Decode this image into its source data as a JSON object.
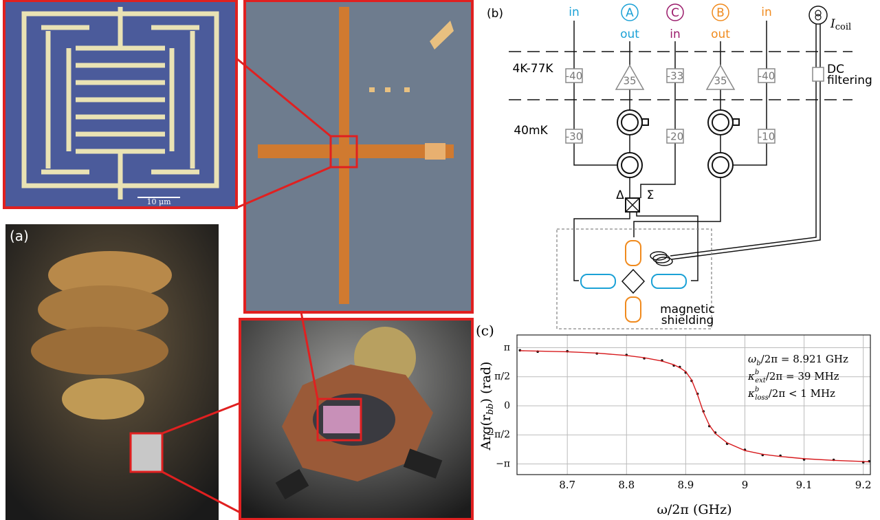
{
  "panels": {
    "a": "(a)",
    "b": "(b)"
  },
  "micrograph": {
    "scale_bar": "10 μm"
  },
  "diagram": {
    "port_in_a": "in",
    "port_a": "A",
    "port_out_a": "out",
    "port_c": "C",
    "port_in_c": "in",
    "port_b": "B",
    "port_out_b": "out",
    "port_in_b": "in",
    "coil": {
      "base": "I",
      "sub": "coil"
    },
    "stage_hot": "4K-77K",
    "stage_cold": "40mK",
    "att_1": "-40",
    "amp_a": "35",
    "att_2": "-33",
    "amp_b": "35",
    "att_3": "-40",
    "dc_filter": [
      "DC",
      "filtering"
    ],
    "att_4": "-30",
    "att_5": "-20",
    "att_6": "-10",
    "delta": "Δ",
    "sigma": "Σ",
    "shield": [
      "magnetic",
      "shielding"
    ]
  },
  "chart_data": {
    "type": "line",
    "title": "(c)",
    "xlabel": "ω/2π (GHz)",
    "ylabel": {
      "base": "Arg(r",
      "sub": "bb",
      "rest": ")   (rad)"
    },
    "annotations": [
      {
        "base": "ω",
        "sub": "b",
        "rest": "/2π = 8.921 GHz"
      },
      {
        "base": "κ",
        "sup": "b",
        "sub": "ext",
        "rest": "/2π = 39 MHz"
      },
      {
        "base": "κ",
        "sup": "b",
        "sub": "loss",
        "rest": "/2π < 1 MHz"
      }
    ],
    "x": [
      8.62,
      8.65,
      8.7,
      8.75,
      8.8,
      8.83,
      8.86,
      8.88,
      8.89,
      8.9,
      8.91,
      8.92,
      8.93,
      8.94,
      8.95,
      8.97,
      9.0,
      9.03,
      9.06,
      9.1,
      9.15,
      9.2,
      9.21
    ],
    "series": [
      {
        "color": "#111111",
        "marker": true,
        "values": [
          3.0,
          2.93,
          2.95,
          2.83,
          2.75,
          2.57,
          2.45,
          2.18,
          2.1,
          1.8,
          1.35,
          0.65,
          -0.3,
          -1.1,
          -1.45,
          -2.05,
          -2.38,
          -2.66,
          -2.7,
          -2.9,
          -2.92,
          -3.05,
          -3.0
        ]
      },
      {
        "color": "#d7191c",
        "marker": false,
        "values": [
          2.98,
          2.96,
          2.92,
          2.85,
          2.72,
          2.6,
          2.42,
          2.22,
          2.06,
          1.85,
          1.4,
          0.6,
          -0.35,
          -1.05,
          -1.5,
          -2.0,
          -2.42,
          -2.62,
          -2.74,
          -2.86,
          -2.95,
          -3.01,
          -3.03
        ]
      }
    ],
    "xlim": [
      8.615,
      9.212
    ],
    "ylim": [
      -3.72,
      3.83
    ],
    "xticks": [
      8.7,
      8.8,
      8.9,
      9,
      9.1,
      9.2
    ],
    "yticks": [
      {
        "value": -3.14159,
        "label": "−π"
      },
      {
        "value": -1.5708,
        "label": "−π/2"
      },
      0,
      {
        "value": 1.5708,
        "label": "π/2"
      },
      {
        "value": 3.14159,
        "label": "π"
      }
    ],
    "grid": true
  }
}
